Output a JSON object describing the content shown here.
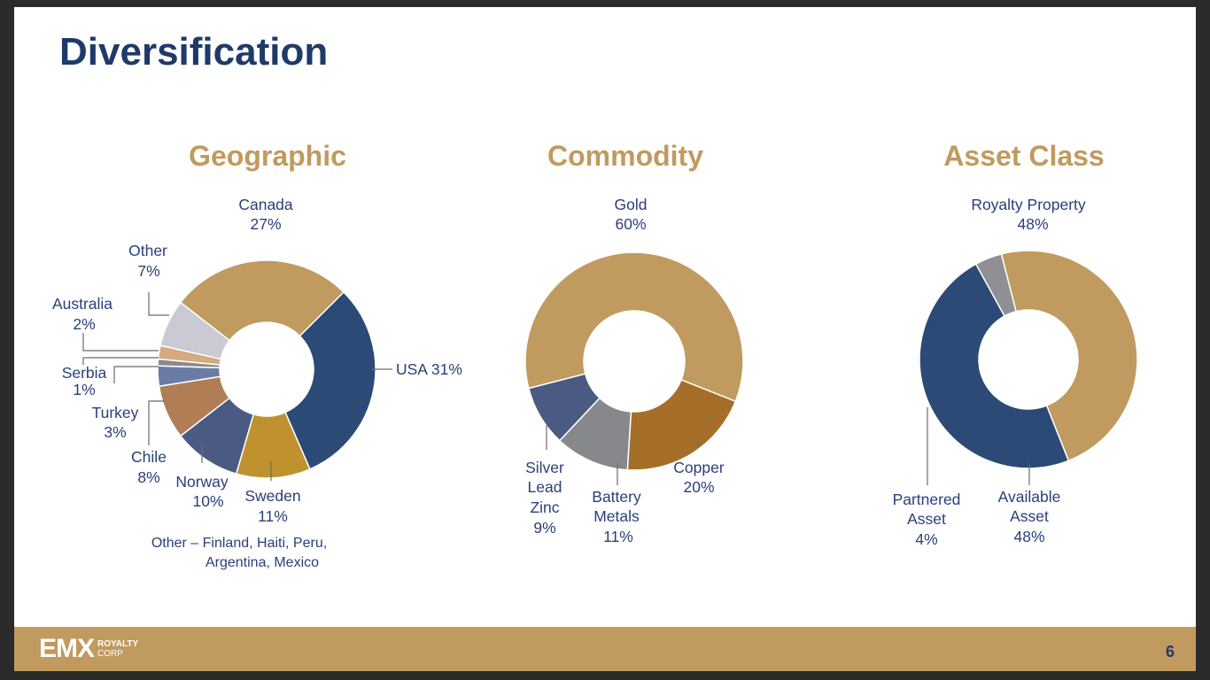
{
  "slide": {
    "title": "Diversification",
    "page_number": "6"
  },
  "footer": {
    "logo_mark": "EMX",
    "logo_line1": "ROYALTY",
    "logo_line2": "CORP"
  },
  "chart_data": [
    {
      "type": "pie",
      "title": "Geographic",
      "categories": [
        "Canada",
        "USA",
        "Sweden",
        "Norway",
        "Chile",
        "Turkey",
        "Serbia",
        "Australia",
        "Other"
      ],
      "values": [
        27,
        31,
        11,
        10,
        8,
        3,
        1,
        2,
        7
      ],
      "labels": [
        "Canada",
        "27%",
        "USA 31%",
        "Sweden",
        "11%",
        "Norway",
        "10%",
        "Chile",
        "8%",
        "Turkey",
        "3%",
        "Serbia",
        "1%",
        "Australia",
        "2%",
        "Other",
        "7%"
      ],
      "colors": [
        "#c09a5f",
        "#2b4a76",
        "#c0912f",
        "#4a5a83",
        "#b07d55",
        "#6a7ba5",
        "#8a8a8a",
        "#d4aa7e",
        "#c9cad3"
      ],
      "footnote": [
        "Other – Finland, Haiti, Peru,",
        "Argentina, Mexico"
      ]
    },
    {
      "type": "pie",
      "title": "Commodity",
      "categories": [
        "Gold",
        "Copper",
        "Battery Metals",
        "Silver Lead Zinc"
      ],
      "values": [
        60,
        20,
        11,
        9
      ],
      "labels": [
        "Gold",
        "60%",
        "Copper",
        "20%",
        "Battery",
        "Metals",
        "11%",
        "Silver",
        "Lead",
        "Zinc",
        "9%"
      ],
      "colors": [
        "#c09a5f",
        "#a56f2a",
        "#87888c",
        "#4a5a83"
      ]
    },
    {
      "type": "pie",
      "title": "Asset Class",
      "categories": [
        "Royalty Property",
        "Available Asset",
        "Partnered Asset"
      ],
      "values": [
        48,
        48,
        4
      ],
      "labels": [
        "Royalty Property",
        "48%",
        "Available",
        "Asset",
        "48%",
        "Partnered",
        "Asset",
        "4%"
      ],
      "colors": [
        "#c09a5f",
        "#2b4a76",
        "#8f9095"
      ]
    }
  ]
}
